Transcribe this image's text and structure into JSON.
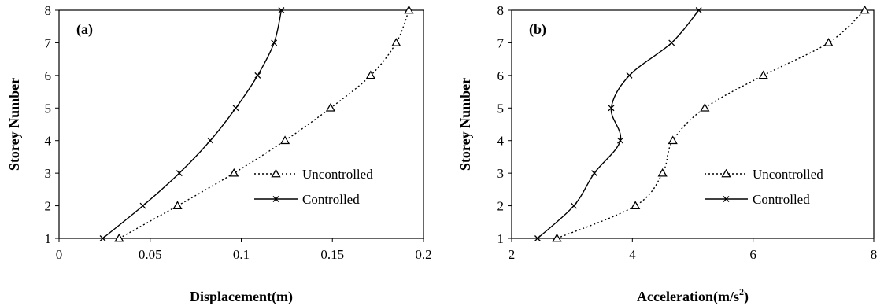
{
  "chart_data": [
    {
      "type": "line",
      "panel_label": "(a)",
      "xlabel": "Displacement(m)",
      "ylabel": "Storey Number",
      "xlim": [
        0,
        0.2
      ],
      "ylim": [
        1,
        8
      ],
      "xticks": [
        "0",
        "0.05",
        "0.1",
        "0.15",
        "0.2"
      ],
      "yticks": [
        "1",
        "2",
        "3",
        "4",
        "5",
        "6",
        "7",
        "8"
      ],
      "legend_position": "lower-right",
      "series": [
        {
          "name": "Uncontrolled",
          "style": "dotted",
          "marker": "triangle",
          "points": [
            [
              0.033,
              1
            ],
            [
              0.065,
              2
            ],
            [
              0.096,
              3
            ],
            [
              0.124,
              4
            ],
            [
              0.149,
              5
            ],
            [
              0.171,
              6
            ],
            [
              0.185,
              7
            ],
            [
              0.192,
              8
            ]
          ]
        },
        {
          "name": "Controlled",
          "style": "solid",
          "marker": "x",
          "points": [
            [
              0.024,
              1
            ],
            [
              0.046,
              2
            ],
            [
              0.066,
              3
            ],
            [
              0.083,
              4
            ],
            [
              0.097,
              5
            ],
            [
              0.109,
              6
            ],
            [
              0.118,
              7
            ],
            [
              0.122,
              8
            ]
          ]
        }
      ]
    },
    {
      "type": "line",
      "panel_label": "(b)",
      "xlabel": "Acceleration(m/s",
      "xlabel_sup": "2",
      "xlabel_end": ")",
      "ylabel": "Storey Number",
      "xlim": [
        2,
        8
      ],
      "ylim": [
        1,
        8
      ],
      "xticks": [
        "2",
        "4",
        "6",
        "8"
      ],
      "yticks": [
        "1",
        "2",
        "3",
        "4",
        "5",
        "6",
        "7",
        "8"
      ],
      "legend_position": "lower-right",
      "series": [
        {
          "name": "Uncontrolled",
          "style": "dotted",
          "marker": "triangle",
          "points": [
            [
              2.75,
              1
            ],
            [
              4.05,
              2
            ],
            [
              4.5,
              3
            ],
            [
              4.67,
              4
            ],
            [
              5.2,
              5
            ],
            [
              6.17,
              6
            ],
            [
              7.25,
              7
            ],
            [
              7.85,
              8
            ]
          ]
        },
        {
          "name": "Controlled",
          "style": "solid",
          "marker": "x",
          "points": [
            [
              2.43,
              1
            ],
            [
              3.03,
              2
            ],
            [
              3.37,
              3
            ],
            [
              3.8,
              4
            ],
            [
              3.65,
              5
            ],
            [
              3.95,
              6
            ],
            [
              4.65,
              7
            ],
            [
              5.1,
              8
            ]
          ]
        }
      ]
    }
  ]
}
